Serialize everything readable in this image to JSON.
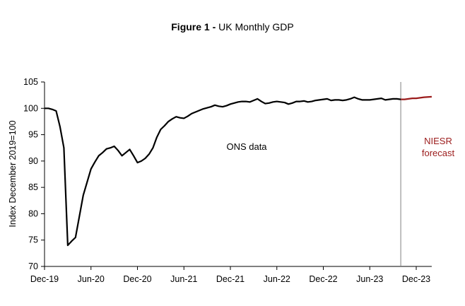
{
  "chart_data": {
    "type": "line",
    "title_bold": "Figure 1 -",
    "title_rest": " UK Monthly GDP",
    "ylabel": "Index December 2019=100",
    "xlabel": "",
    "ylim": [
      70,
      105
    ],
    "yticks": [
      70,
      75,
      80,
      85,
      90,
      95,
      100,
      105
    ],
    "xlim": [
      0,
      48
    ],
    "xticks": [
      {
        "pos": 0,
        "label": "Dec-19"
      },
      {
        "pos": 6,
        "label": "Jun-20"
      },
      {
        "pos": 12,
        "label": "Dec-20"
      },
      {
        "pos": 18,
        "label": "Jun-21"
      },
      {
        "pos": 24,
        "label": "Dec-21"
      },
      {
        "pos": 30,
        "label": "Jun-22"
      },
      {
        "pos": 36,
        "label": "Dec-22"
      },
      {
        "pos": 42,
        "label": "Jun-23"
      },
      {
        "pos": 48,
        "label": "Dec-23"
      }
    ],
    "forecast_start": 46,
    "series": [
      {
        "name": "ONS data",
        "color": "#000000",
        "points": [
          [
            0,
            100.0
          ],
          [
            0.5,
            100.0
          ],
          [
            1,
            99.8
          ],
          [
            1.5,
            99.5
          ],
          [
            2,
            96.5
          ],
          [
            2.5,
            92.5
          ],
          [
            3,
            74.0
          ],
          [
            3.5,
            74.8
          ],
          [
            4,
            75.5
          ],
          [
            4.5,
            79.5
          ],
          [
            5,
            83.5
          ],
          [
            5.5,
            86.0
          ],
          [
            6,
            88.5
          ],
          [
            6.5,
            89.8
          ],
          [
            7,
            91.0
          ],
          [
            7.5,
            91.6
          ],
          [
            8,
            92.3
          ],
          [
            8.5,
            92.5
          ],
          [
            9,
            92.8
          ],
          [
            9.5,
            92.0
          ],
          [
            10,
            91.0
          ],
          [
            10.5,
            91.6
          ],
          [
            11,
            92.2
          ],
          [
            11.5,
            91.0
          ],
          [
            12,
            89.7
          ],
          [
            12.5,
            90.0
          ],
          [
            13,
            90.5
          ],
          [
            13.5,
            91.3
          ],
          [
            14,
            92.5
          ],
          [
            14.5,
            94.5
          ],
          [
            15,
            96.0
          ],
          [
            15.5,
            96.7
          ],
          [
            16,
            97.5
          ],
          [
            16.5,
            98.0
          ],
          [
            17,
            98.4
          ],
          [
            17.5,
            98.2
          ],
          [
            18,
            98.1
          ],
          [
            18.5,
            98.5
          ],
          [
            19,
            99.0
          ],
          [
            19.5,
            99.3
          ],
          [
            20,
            99.6
          ],
          [
            20.5,
            99.9
          ],
          [
            21,
            100.1
          ],
          [
            21.5,
            100.3
          ],
          [
            22,
            100.6
          ],
          [
            22.5,
            100.4
          ],
          [
            23,
            100.3
          ],
          [
            23.5,
            100.5
          ],
          [
            24,
            100.8
          ],
          [
            24.5,
            101.0
          ],
          [
            25,
            101.2
          ],
          [
            25.5,
            101.3
          ],
          [
            26,
            101.3
          ],
          [
            26.5,
            101.2
          ],
          [
            27,
            101.5
          ],
          [
            27.5,
            101.8
          ],
          [
            28,
            101.3
          ],
          [
            28.5,
            100.9
          ],
          [
            29,
            101.0
          ],
          [
            29.5,
            101.2
          ],
          [
            30,
            101.3
          ],
          [
            30.5,
            101.2
          ],
          [
            31,
            101.1
          ],
          [
            31.5,
            100.8
          ],
          [
            32,
            101.0
          ],
          [
            32.5,
            101.3
          ],
          [
            33,
            101.3
          ],
          [
            33.5,
            101.4
          ],
          [
            34,
            101.2
          ],
          [
            34.5,
            101.3
          ],
          [
            35,
            101.5
          ],
          [
            35.5,
            101.6
          ],
          [
            36,
            101.7
          ],
          [
            36.5,
            101.8
          ],
          [
            37,
            101.5
          ],
          [
            37.5,
            101.6
          ],
          [
            38,
            101.6
          ],
          [
            38.5,
            101.5
          ],
          [
            39,
            101.6
          ],
          [
            39.5,
            101.8
          ],
          [
            40,
            102.1
          ],
          [
            40.5,
            101.8
          ],
          [
            41,
            101.6
          ],
          [
            41.5,
            101.6
          ],
          [
            42,
            101.6
          ],
          [
            42.5,
            101.7
          ],
          [
            43,
            101.8
          ],
          [
            43.5,
            101.9
          ],
          [
            44,
            101.6
          ],
          [
            44.5,
            101.7
          ],
          [
            45,
            101.8
          ],
          [
            45.5,
            101.8
          ],
          [
            46,
            101.7
          ]
        ]
      },
      {
        "name": "NIESR forecast",
        "color": "#9b1b1b",
        "points": [
          [
            46,
            101.7
          ],
          [
            46.5,
            101.7
          ],
          [
            47,
            101.8
          ],
          [
            47.5,
            101.9
          ],
          [
            48,
            101.9
          ],
          [
            48.5,
            102.0
          ],
          [
            49,
            102.1
          ],
          [
            49.5,
            102.15
          ],
          [
            50,
            102.2
          ]
        ]
      }
    ],
    "annotations": [
      {
        "id": "ons",
        "text": "ONS data",
        "color": "#000000"
      },
      {
        "id": "niesr_1",
        "text": "NIESR",
        "color": "#9b1b1b"
      },
      {
        "id": "niesr_2",
        "text": "forecast",
        "color": "#9b1b1b"
      }
    ]
  }
}
